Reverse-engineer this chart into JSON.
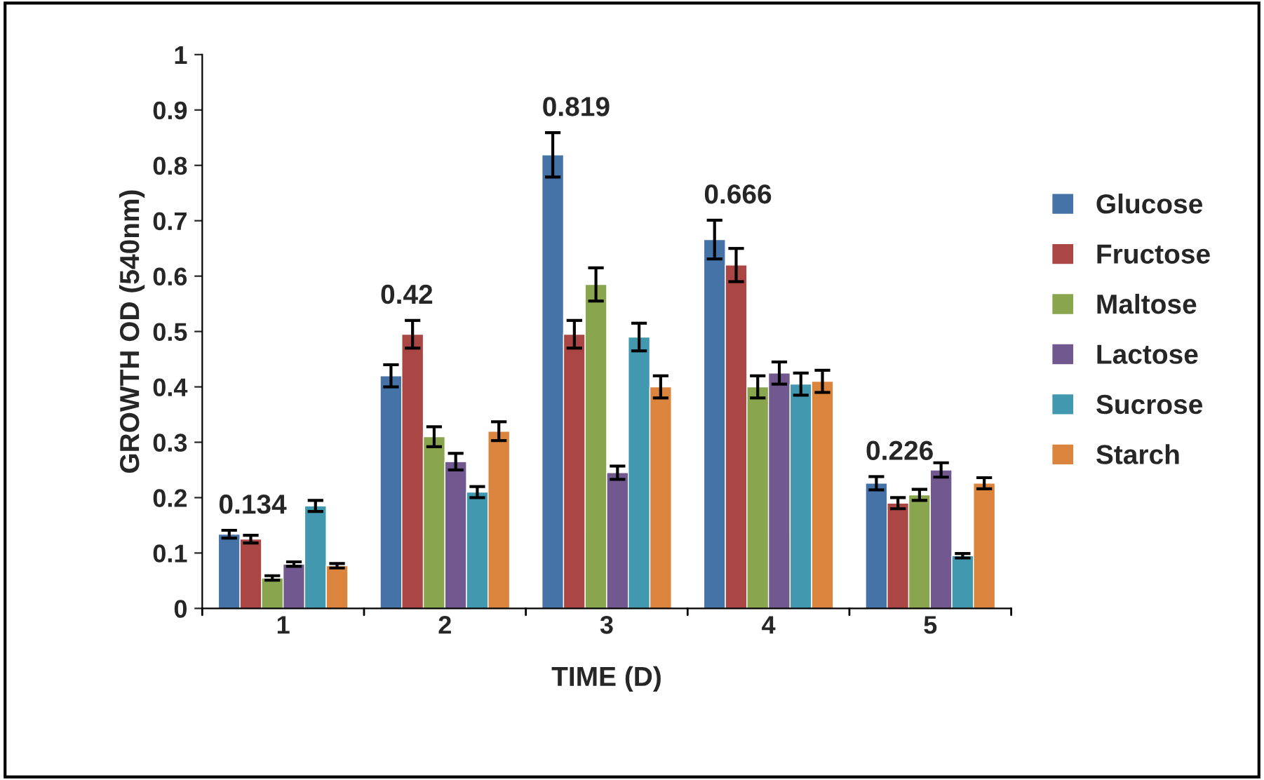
{
  "chart_data": {
    "type": "bar",
    "xlabel": "TIME (D)",
    "ylabel": "GROWTH OD (540nm)",
    "categories": [
      "1",
      "2",
      "3",
      "4",
      "5"
    ],
    "series": [
      {
        "name": "Glucose",
        "color": "#4572a7",
        "values": [
          0.134,
          0.42,
          0.819,
          0.666,
          0.226
        ],
        "errors": [
          0.007,
          0.02,
          0.04,
          0.035,
          0.012
        ],
        "value_labels": [
          "0.134",
          "0.42",
          "0.819",
          "0.666",
          "0.226"
        ]
      },
      {
        "name": "Fructose",
        "color": "#aa4643",
        "values": [
          0.125,
          0.495,
          0.495,
          0.62,
          0.19
        ],
        "errors": [
          0.007,
          0.025,
          0.025,
          0.03,
          0.01
        ]
      },
      {
        "name": "Maltose",
        "color": "#89a54e",
        "values": [
          0.055,
          0.31,
          0.585,
          0.4,
          0.205
        ],
        "errors": [
          0.004,
          0.018,
          0.03,
          0.02,
          0.01
        ]
      },
      {
        "name": "Lactose",
        "color": "#71588f",
        "values": [
          0.08,
          0.265,
          0.245,
          0.425,
          0.25
        ],
        "errors": [
          0.004,
          0.015,
          0.012,
          0.02,
          0.013
        ]
      },
      {
        "name": "Sucrose",
        "color": "#4198af",
        "values": [
          0.185,
          0.21,
          0.49,
          0.405,
          0.095
        ],
        "errors": [
          0.01,
          0.01,
          0.025,
          0.02,
          0.004
        ]
      },
      {
        "name": "Starch",
        "color": "#db843d",
        "values": [
          0.077,
          0.32,
          0.4,
          0.41,
          0.226
        ],
        "errors": [
          0.004,
          0.017,
          0.02,
          0.02,
          0.01
        ]
      }
    ],
    "ylim": [
      0,
      1
    ],
    "yticks": [
      0,
      0.1,
      0.2,
      0.3,
      0.4,
      0.5,
      0.6,
      0.7,
      0.8,
      0.9,
      1
    ],
    "legend": "right",
    "grid": false
  }
}
